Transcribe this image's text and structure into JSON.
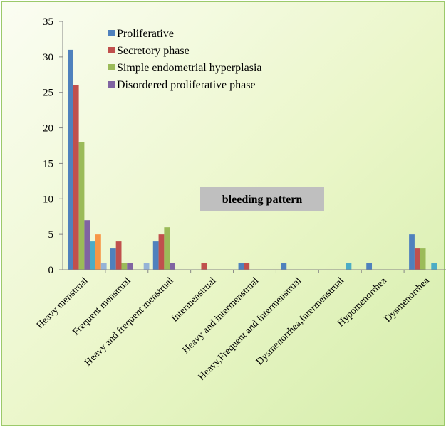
{
  "chart_data": {
    "type": "bar",
    "title": "",
    "xlabel": "",
    "ylabel": "",
    "ylim": [
      0,
      35
    ],
    "yticks": [
      0,
      5,
      10,
      15,
      20,
      25,
      30,
      35
    ],
    "grid": false,
    "legend_position": "top",
    "annotation": "bleeding pattern",
    "categories": [
      "Heavy menstrual",
      "Frequent menstrual",
      "Heavy and frequent menstrual",
      "Intermenstrual",
      "Heavy and intermenstrual",
      "Heavy,Frequent and Intermenstrual",
      "Dysmenorrhea,Intermenstrual",
      "Hypomenorrhea",
      "Dysmenorrhea"
    ],
    "series": [
      {
        "name": "Proliferative",
        "color": "#4f81bd",
        "values": [
          31,
          3,
          4,
          0,
          1,
          1,
          0,
          1,
          5
        ]
      },
      {
        "name": "Secretory phase",
        "color": "#c0504d",
        "values": [
          26,
          4,
          5,
          1,
          1,
          0,
          0,
          0,
          3
        ]
      },
      {
        "name": "Simple endometrial hyperplasia",
        "color": "#9bbb59",
        "values": [
          18,
          1,
          6,
          0,
          0,
          0,
          0,
          0,
          3
        ]
      },
      {
        "name": "Disordered proliferative phase",
        "color": "#8064a2",
        "values": [
          7,
          1,
          1,
          0,
          0,
          0,
          0,
          0,
          0
        ]
      },
      {
        "name": "",
        "color": "#4bacc6",
        "values": [
          4,
          0,
          0,
          0,
          0,
          0,
          1,
          0,
          1
        ]
      },
      {
        "name": "",
        "color": "#f79646",
        "values": [
          5,
          0,
          0,
          0,
          0,
          0,
          0,
          0,
          0
        ]
      },
      {
        "name": "",
        "color": "#95b3d7",
        "values": [
          1,
          1,
          0,
          0,
          0,
          0,
          0,
          0,
          0
        ]
      }
    ]
  }
}
